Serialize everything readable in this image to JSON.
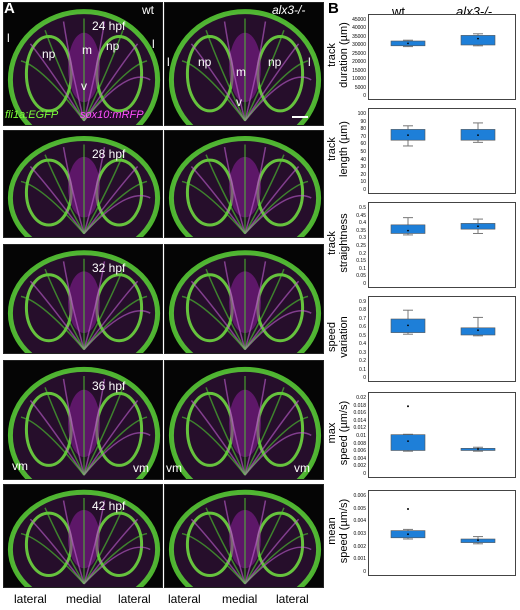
{
  "panel_a": {
    "label": "A",
    "genotype_labels": {
      "wt": "wt",
      "mut": "alx3-/-"
    },
    "stages": [
      "24 hpf",
      "28 hpf",
      "32 hpf",
      "36 hpf",
      "42 hpf"
    ],
    "annotations": {
      "l": "l",
      "np": "np",
      "m": "m",
      "v": "v",
      "vm": "vm"
    },
    "markers": {
      "green": "fli1a:EGFP",
      "magenta": "sox10:mRFP"
    },
    "bottom_labels": [
      "lateral",
      "medial",
      "lateral",
      "lateral",
      "medial",
      "lateral"
    ]
  },
  "panel_b": {
    "label": "B",
    "columns": [
      "wt",
      "alx3-/-"
    ],
    "box_color": "#1e7fd8",
    "charts": [
      {
        "ylabel": [
          "track",
          "duration (µm)"
        ],
        "ticks": [
          "45000",
          "40000",
          "35000",
          "30000",
          "25000",
          "20000",
          "15000",
          "10000",
          "5000",
          "0"
        ],
        "ymax": 45000,
        "wt": {
          "q1": 29500,
          "q3": 32500,
          "min": 29000,
          "max": 33000,
          "mean": 31000
        },
        "mut": {
          "q1": 30000,
          "q3": 36000,
          "min": 29500,
          "max": 37000,
          "mean": 34000
        }
      },
      {
        "ylabel": [
          "track",
          "length (µm)"
        ],
        "ticks": [
          "100",
          "90",
          "80",
          "70",
          "60",
          "50",
          "40",
          "30",
          "20",
          "10",
          "0"
        ],
        "ymax": 100,
        "wt": {
          "q1": 65,
          "q3": 80,
          "min": 57,
          "max": 85,
          "mean": 72
        },
        "mut": {
          "q1": 65,
          "q3": 80,
          "min": 62,
          "max": 89,
          "mean": 72
        }
      },
      {
        "ylabel": [
          "track",
          "straightness"
        ],
        "ticks": [
          "0.5",
          "0.45",
          "0.4",
          "0.35",
          "0.3",
          "0.25",
          "0.2",
          "0.15",
          "0.1",
          "0.05",
          "0"
        ],
        "ymax": 0.5,
        "wt": {
          "q1": 0.33,
          "q3": 0.39,
          "min": 0.32,
          "max": 0.44,
          "mean": 0.35
        },
        "mut": {
          "q1": 0.36,
          "q3": 0.4,
          "min": 0.33,
          "max": 0.43,
          "mean": 0.38
        }
      },
      {
        "ylabel": [
          "speed",
          "variation"
        ],
        "ticks": [
          "0.9",
          "0.8",
          "0.7",
          "0.6",
          "0.5",
          "0.4",
          "0.3",
          "0.2",
          "0.1",
          "0"
        ],
        "ymax": 0.9,
        "wt": {
          "q1": 0.53,
          "q3": 0.7,
          "min": 0.51,
          "max": 0.81,
          "mean": 0.62
        },
        "mut": {
          "q1": 0.5,
          "q3": 0.59,
          "min": 0.49,
          "max": 0.72,
          "mean": 0.56
        }
      },
      {
        "ylabel": [
          "max",
          "speed (µm/s)"
        ],
        "ticks": [
          "0.02",
          "0.018",
          "0.016",
          "0.014",
          "0.012",
          "0.01",
          "0.008",
          "0.006",
          "0.004",
          "0.002",
          "0"
        ],
        "ymax": 0.02,
        "wt": {
          "q1": 0.0057,
          "q3": 0.0101,
          "min": 0.0055,
          "max": 0.0102,
          "mean": 0.0083,
          "outlier": 0.018
        },
        "mut": {
          "q1": 0.0057,
          "q3": 0.0063,
          "min": 0.0055,
          "max": 0.0066,
          "mean": 0.0061
        }
      },
      {
        "ylabel": [
          "mean",
          "speed (µm/s)"
        ],
        "ticks": [
          "0.006",
          "0.005",
          "0.004",
          "0.003",
          "0.002",
          "0.001",
          "0"
        ],
        "ymax": 0.006,
        "wt": {
          "q1": 0.0026,
          "q3": 0.0032,
          "min": 0.0025,
          "max": 0.0033,
          "mean": 0.0029,
          "outlier": 0.005
        },
        "mut": {
          "q1": 0.0022,
          "q3": 0.0025,
          "min": 0.0021,
          "max": 0.0027,
          "mean": 0.0024
        }
      }
    ]
  }
}
